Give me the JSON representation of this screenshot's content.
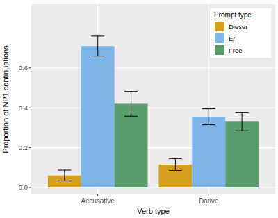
{
  "chart_data": {
    "type": "bar",
    "x_label": "Verb type",
    "y_label": "Proportion of NP1 continuations",
    "legend_title": "Prompt type",
    "categories": [
      "Accusative",
      "Dative"
    ],
    "series": [
      {
        "name": "Dieser",
        "color": "#d4a01e",
        "values": [
          0.06,
          0.115
        ],
        "errors": [
          0.027,
          0.03
        ]
      },
      {
        "name": "Er",
        "color": "#7db5e8",
        "values": [
          0.71,
          0.355
        ],
        "errors": [
          0.05,
          0.04
        ]
      },
      {
        "name": "Free",
        "color": "#5a9e6e",
        "values": [
          0.42,
          0.33
        ],
        "errors": [
          0.062,
          0.045
        ]
      }
    ],
    "ylim": [
      -0.035,
      0.92
    ],
    "yticks": [
      {
        "value": 0,
        "label": "0.0"
      },
      {
        "value": 0.2,
        "label": "0.2"
      },
      {
        "value": 0.4,
        "label": "0.4"
      },
      {
        "value": 0.6,
        "label": "0.6"
      }
    ],
    "grid": true,
    "legend": "top-right"
  }
}
